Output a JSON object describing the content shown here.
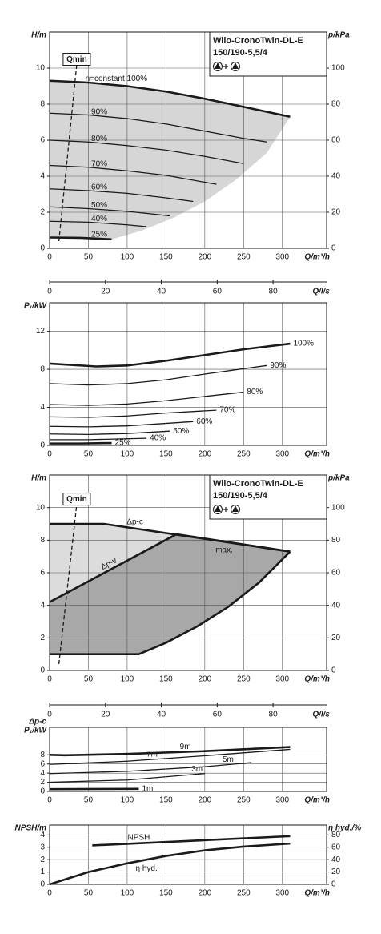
{
  "chart_data": [
    {
      "type": "line",
      "title": [
        "Wilo-CronoTwin-DL-E",
        "150/190-5,5/4"
      ],
      "y_label": [
        "H/m"
      ],
      "y2_label": "p/kPa",
      "x_label": "Q/m³/h",
      "xlim": [
        0,
        357
      ],
      "xticks": [
        0,
        50,
        100,
        150,
        200,
        250,
        300
      ],
      "ylim": [
        0,
        12
      ],
      "yticks": [
        0,
        2,
        4,
        6,
        8,
        10
      ],
      "y2lim": [
        0,
        120
      ],
      "y2ticks": [
        0,
        20,
        40,
        60,
        80,
        100
      ],
      "grid": true,
      "regions": [
        {
          "color": "#d6d6d6",
          "x": [
            0,
            0,
            50,
            100,
            150,
            200,
            250,
            310,
            280,
            240,
            200,
            160,
            120,
            80
          ],
          "values": [
            0.6,
            9.3,
            9.2,
            9.0,
            8.7,
            8.3,
            7.85,
            7.3,
            5.3,
            3.8,
            2.6,
            1.7,
            1.0,
            0.5
          ]
        }
      ],
      "series": [
        {
          "name": "n=constant 100%",
          "color": "#1a1a1a",
          "width": 2.6,
          "x": [
            0,
            50,
            100,
            150,
            200,
            250,
            310
          ],
          "values": [
            9.3,
            9.2,
            9.0,
            8.7,
            8.3,
            7.85,
            7.3
          ]
        },
        {
          "name": "90%",
          "color": "#1a1a1a",
          "width": 1.3,
          "x": [
            0,
            50,
            100,
            150,
            200,
            250,
            280
          ],
          "values": [
            7.5,
            7.4,
            7.2,
            6.9,
            6.5,
            6.1,
            5.9
          ]
        },
        {
          "name": "80%",
          "color": "#1a1a1a",
          "width": 1.3,
          "x": [
            0,
            50,
            100,
            150,
            200,
            250
          ],
          "values": [
            6.0,
            5.9,
            5.7,
            5.45,
            5.1,
            4.7
          ]
        },
        {
          "name": "70%",
          "color": "#1a1a1a",
          "width": 1.3,
          "x": [
            0,
            50,
            100,
            150,
            215
          ],
          "values": [
            4.6,
            4.5,
            4.3,
            4.05,
            3.55
          ]
        },
        {
          "name": "60%",
          "color": "#1a1a1a",
          "width": 1.3,
          "x": [
            0,
            50,
            100,
            150,
            185
          ],
          "values": [
            3.3,
            3.2,
            3.05,
            2.8,
            2.6
          ]
        },
        {
          "name": "50%",
          "color": "#1a1a1a",
          "width": 1.3,
          "x": [
            0,
            50,
            100,
            155
          ],
          "values": [
            2.3,
            2.2,
            2.05,
            1.8
          ]
        },
        {
          "name": "40%",
          "color": "#1a1a1a",
          "width": 1.3,
          "x": [
            0,
            50,
            100,
            125
          ],
          "values": [
            1.5,
            1.45,
            1.3,
            1.2
          ]
        },
        {
          "name": "25%",
          "color": "#1a1a1a",
          "width": 2.6,
          "x": [
            0,
            40,
            80
          ],
          "values": [
            0.6,
            0.58,
            0.5
          ]
        },
        {
          "name": "Qmin",
          "color": "#1a1a1a",
          "width": 1.3,
          "dash": true,
          "x": [
            12,
            35
          ],
          "values": [
            0.4,
            10.2
          ]
        }
      ]
    },
    {
      "type": "axis",
      "x_label": "Q/l/s",
      "xlim": [
        0,
        99.17
      ],
      "xticks": [
        0,
        20,
        40,
        60,
        80
      ]
    },
    {
      "type": "line",
      "y_label": [
        "P₁/kW"
      ],
      "x_label": "Q/m³/h",
      "xlim": [
        0,
        357
      ],
      "xticks": [
        0,
        50,
        100,
        150,
        200,
        250,
        300
      ],
      "ylim": [
        0,
        15
      ],
      "yticks": [
        0,
        4,
        8,
        12
      ],
      "grid": true,
      "series": [
        {
          "name": "100%",
          "color": "#1a1a1a",
          "width": 2.6,
          "x": [
            0,
            60,
            100,
            150,
            200,
            250,
            310
          ],
          "values": [
            8.6,
            8.3,
            8.4,
            8.9,
            9.5,
            10.1,
            10.7
          ]
        },
        {
          "name": "90%",
          "color": "#1a1a1a",
          "width": 1.3,
          "x": [
            0,
            50,
            100,
            150,
            200,
            280
          ],
          "values": [
            6.5,
            6.35,
            6.5,
            6.9,
            7.5,
            8.4
          ]
        },
        {
          "name": "80%",
          "color": "#1a1a1a",
          "width": 1.3,
          "x": [
            0,
            50,
            100,
            150,
            250
          ],
          "values": [
            4.3,
            4.2,
            4.35,
            4.7,
            5.6
          ]
        },
        {
          "name": "70%",
          "color": "#1a1a1a",
          "width": 1.3,
          "x": [
            0,
            50,
            100,
            150,
            215
          ],
          "values": [
            3.0,
            2.95,
            3.1,
            3.4,
            3.7
          ]
        },
        {
          "name": "60%",
          "color": "#1a1a1a",
          "width": 1.3,
          "x": [
            0,
            50,
            100,
            185
          ],
          "values": [
            2.0,
            1.95,
            2.05,
            2.5
          ]
        },
        {
          "name": "50%",
          "color": "#1a1a1a",
          "width": 1.3,
          "x": [
            0,
            50,
            100,
            155
          ],
          "values": [
            1.2,
            1.15,
            1.25,
            1.5
          ]
        },
        {
          "name": "40%",
          "color": "#1a1a1a",
          "width": 1.3,
          "x": [
            0,
            50,
            125
          ],
          "values": [
            0.6,
            0.6,
            0.75
          ]
        },
        {
          "name": "25%",
          "color": "#1a1a1a",
          "width": 2.6,
          "x": [
            0,
            40,
            80
          ],
          "values": [
            0.2,
            0.2,
            0.25
          ]
        }
      ]
    },
    {
      "type": "line",
      "title": [
        "Wilo-CronoTwin-DL-E",
        "150/190-5,5/4"
      ],
      "y_label": [
        "H/m"
      ],
      "y2_label": "p/kPa",
      "x_label": "Q/m³/h",
      "xlim": [
        0,
        357
      ],
      "xticks": [
        0,
        50,
        100,
        150,
        200,
        250,
        300
      ],
      "ylim": [
        0,
        12
      ],
      "yticks": [
        0,
        2,
        4,
        6,
        8,
        10
      ],
      "y2lim": [
        0,
        120
      ],
      "y2ticks": [
        0,
        20,
        40,
        60,
        80,
        100
      ],
      "grid": true,
      "regions": [
        {
          "color": "#dcdcdc",
          "x": [
            0,
            0,
            70,
            165
          ],
          "values": [
            4.2,
            9,
            9,
            8.4
          ]
        },
        {
          "color": "#a8a8a8",
          "x": [
            0,
            165,
            310,
            270,
            230,
            190,
            150,
            115,
            0
          ],
          "values": [
            4.2,
            8.4,
            7.3,
            5.4,
            3.9,
            2.7,
            1.7,
            1,
            1
          ]
        }
      ],
      "series": [
        {
          "name": "Δp-c",
          "color": "#1a1a1a",
          "width": 2.6,
          "x": [
            0,
            70,
            310
          ],
          "values": [
            9,
            9,
            7.3
          ]
        },
        {
          "name": "Δp-v",
          "color": "#1a1a1a",
          "width": 2.6,
          "x": [
            0,
            165
          ],
          "values": [
            4.2,
            8.4
          ]
        },
        {
          "name": "max.",
          "color": "#1a1a1a",
          "width": 2.6,
          "x": [
            165,
            310
          ],
          "values": [
            8.35,
            7.3
          ]
        },
        {
          "color": "#1a1a1a",
          "width": 2.6,
          "x": [
            0,
            115,
            150,
            190,
            230,
            270,
            310
          ],
          "values": [
            1,
            1,
            1.7,
            2.7,
            3.9,
            5.4,
            7.3
          ]
        },
        {
          "name": "Qmin",
          "color": "#1a1a1a",
          "width": 1.3,
          "dash": true,
          "x": [
            12,
            35
          ],
          "values": [
            0.4,
            10.2
          ]
        }
      ]
    },
    {
      "type": "axis",
      "x_label": "Q/l/s",
      "xlim": [
        0,
        99.17
      ],
      "xticks": [
        0,
        20,
        40,
        60,
        80
      ]
    },
    {
      "type": "line",
      "y_label": [
        "Δp-c",
        "P₁/kW"
      ],
      "x_label": "Q/m³/h",
      "xlim": [
        0,
        357
      ],
      "xticks": [
        0,
        50,
        100,
        150,
        200,
        250,
        300
      ],
      "ylim": [
        0,
        14
      ],
      "yticks": [
        0,
        2,
        4,
        6,
        8
      ],
      "grid": true,
      "series": [
        {
          "name": "9m",
          "color": "#1a1a1a",
          "width": 2.6,
          "x": [
            0,
            20,
            100,
            200,
            310
          ],
          "values": [
            8.0,
            7.9,
            8.2,
            8.8,
            9.7
          ]
        },
        {
          "name": "7m",
          "color": "#1a1a1a",
          "width": 1.3,
          "x": [
            0,
            100,
            200,
            310
          ],
          "values": [
            5.9,
            6.6,
            7.8,
            9.2
          ]
        },
        {
          "name": "5m",
          "color": "#1a1a1a",
          "width": 1.3,
          "x": [
            0,
            100,
            200,
            260
          ],
          "values": [
            3.9,
            4.4,
            5.4,
            6.3
          ]
        },
        {
          "name": "3m",
          "color": "#1a1a1a",
          "width": 1.3,
          "x": [
            0,
            100,
            200
          ],
          "values": [
            2.0,
            2.5,
            3.9
          ]
        },
        {
          "name": "1m",
          "color": "#1a1a1a",
          "width": 2.6,
          "x": [
            0,
            115
          ],
          "values": [
            0.5,
            0.55
          ]
        }
      ]
    },
    {
      "type": "line",
      "y_label": [
        "NPSH/m"
      ],
      "y2_label": "η hyd./%",
      "x_label": "Q/m³/h",
      "xlim": [
        0,
        357
      ],
      "xticks": [
        0,
        50,
        100,
        150,
        200,
        250,
        300
      ],
      "ylim": [
        0,
        4.8
      ],
      "yticks": [
        0,
        1,
        2,
        3,
        4
      ],
      "y2lim": [
        0,
        96
      ],
      "y2ticks": [
        0,
        20,
        40,
        60,
        80
      ],
      "grid": true,
      "series": [
        {
          "name": "NPSH",
          "color": "#1a1a1a",
          "width": 2.6,
          "x": [
            55,
            310
          ],
          "values": [
            3.15,
            3.9
          ]
        },
        {
          "name": "η hyd.",
          "axis": "y2",
          "color": "#1a1a1a",
          "width": 2.6,
          "x": [
            0,
            50,
            100,
            150,
            200,
            250,
            310
          ],
          "values": [
            0,
            20,
            34,
            46,
            55,
            61,
            66
          ]
        }
      ]
    }
  ]
}
